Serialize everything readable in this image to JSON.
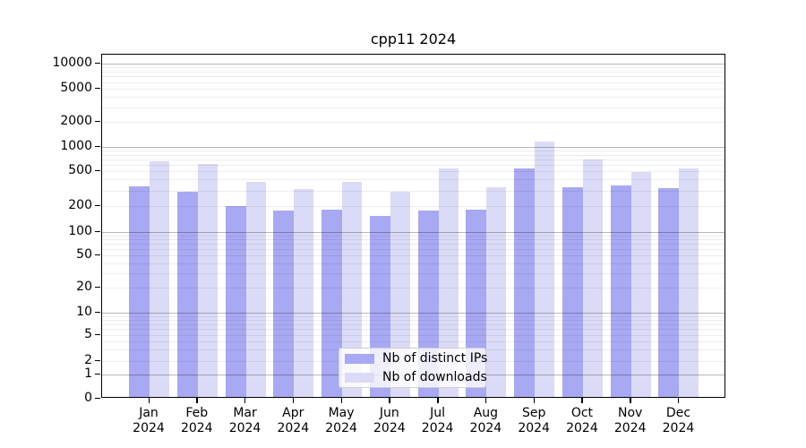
{
  "title": "cpp11 2024",
  "legend": {
    "items": [
      {
        "label": "Nb of distinct IPs"
      },
      {
        "label": "Nb of downloads"
      }
    ]
  },
  "colors": {
    "distinct_ips": "#a8a8f3",
    "downloads": "#dbdbf7",
    "grid_minor": "rgba(0,0,0,0.07)",
    "grid_major": "rgba(0,0,0,0.28)",
    "axis": "#000000"
  },
  "chart_data": {
    "type": "bar",
    "title": "cpp11 2024",
    "yscale": "symlog",
    "categories": [
      "Jan 2024",
      "Feb 2024",
      "Mar 2024",
      "Apr 2024",
      "May 2024",
      "Jun 2024",
      "Jul 2024",
      "Aug 2024",
      "Sep 2024",
      "Oct 2024",
      "Nov 2024",
      "Dec 2024"
    ],
    "series": [
      {
        "name": "Nb of distinct IPs",
        "color": "#a8a8f3",
        "values": [
          320,
          280,
          192,
          168,
          172,
          145,
          168,
          172,
          510,
          312,
          330,
          305
        ]
      },
      {
        "name": "Nb of downloads",
        "color": "#dbdbf7",
        "values": [
          635,
          580,
          362,
          300,
          362,
          276,
          510,
          312,
          1100,
          662,
          468,
          510
        ]
      }
    ],
    "y_ticks": [
      0,
      1,
      2,
      5,
      10,
      20,
      50,
      100,
      200,
      500,
      1000,
      2000,
      5000,
      10000
    ],
    "ylim": [
      0,
      10000
    ],
    "grid": true,
    "legend_position": "lower center"
  }
}
